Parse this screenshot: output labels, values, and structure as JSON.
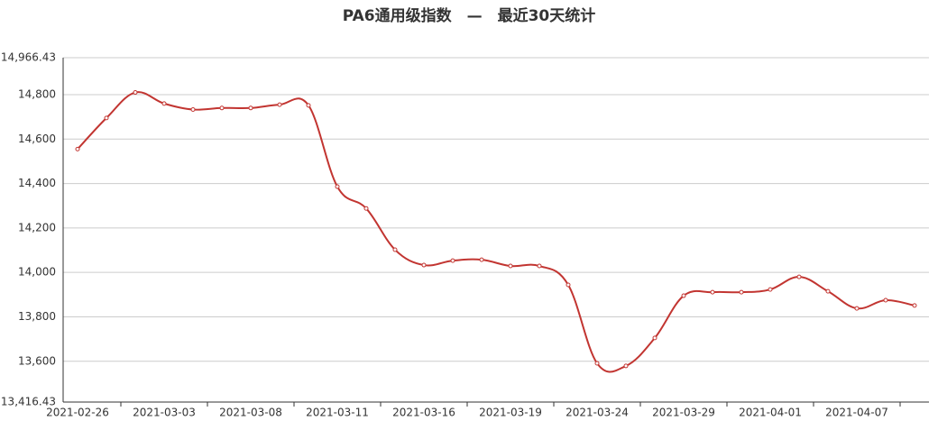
{
  "chart_data": {
    "type": "line",
    "title": "PA6通用级指数　—　最近30天统计",
    "categories": [
      "2021-02-26",
      null,
      null,
      "2021-03-03",
      null,
      null,
      "2021-03-08",
      null,
      null,
      "2021-03-11",
      null,
      null,
      "2021-03-16",
      null,
      null,
      "2021-03-19",
      null,
      null,
      "2021-03-24",
      null,
      null,
      "2021-03-29",
      null,
      null,
      "2021-04-01",
      null,
      null,
      "2021-04-07",
      null,
      null
    ],
    "series": [
      {
        "color": "#c23531",
        "values": [
          14555,
          14695,
          14810,
          14760,
          14733,
          14740,
          14740,
          14755,
          14752,
          14386,
          14288,
          14102,
          14033,
          14053,
          14057,
          14029,
          14029,
          13944,
          13591,
          13579,
          13705,
          13895,
          13911,
          13911,
          13923,
          13980,
          13915,
          13838,
          13875,
          13851
        ]
      }
    ],
    "ylim": [
      13416.43,
      14966.43
    ],
    "yticks": [
      {
        "value": 13416.43,
        "label": "13,416.43"
      },
      {
        "value": 13600,
        "label": "13,600"
      },
      {
        "value": 13800,
        "label": "13,800"
      },
      {
        "value": 14000,
        "label": "14,000"
      },
      {
        "value": 14200,
        "label": "14,200"
      },
      {
        "value": 14400,
        "label": "14,400"
      },
      {
        "value": 14600,
        "label": "14,600"
      },
      {
        "value": 14800,
        "label": "14,800"
      },
      {
        "value": 14966.43,
        "label": "14,966.43"
      }
    ],
    "grid": true
  }
}
